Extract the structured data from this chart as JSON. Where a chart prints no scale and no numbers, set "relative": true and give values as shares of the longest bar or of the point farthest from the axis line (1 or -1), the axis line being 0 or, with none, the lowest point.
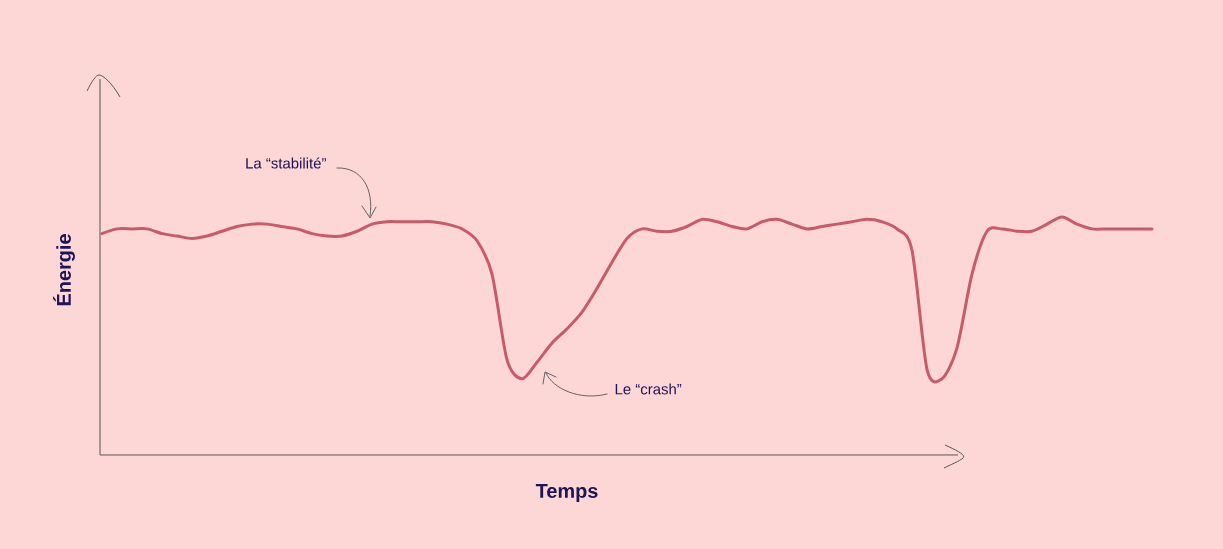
{
  "chart_data": {
    "type": "line",
    "relative": true,
    "xlabel": "Temps",
    "ylabel": "Énergie",
    "annotations": [
      "La “stabilité”",
      "Le “crash”"
    ],
    "categories": [
      null,
      null,
      null,
      null,
      null,
      null,
      null,
      null,
      null,
      null,
      null,
      null,
      null,
      null,
      null,
      null,
      null,
      null,
      null,
      null,
      null,
      null,
      null,
      null,
      null,
      null,
      null,
      null,
      null,
      null,
      null,
      null,
      null,
      null,
      null,
      null,
      null,
      null,
      null,
      null,
      null,
      null,
      null,
      null,
      null,
      null,
      null,
      null,
      null,
      null,
      null,
      null,
      null,
      null,
      null,
      null,
      null,
      null,
      null,
      null,
      null,
      null,
      null,
      null,
      null,
      null,
      null,
      null,
      null,
      null,
      null
    ],
    "series": [
      {
        "color": "#c85a6a",
        "values": [
          0.93,
          0.95,
          0.95,
          0.95,
          0.93,
          0.92,
          0.91,
          0.92,
          0.94,
          0.96,
          0.97,
          0.97,
          0.96,
          0.95,
          0.93,
          0.92,
          0.92,
          0.94,
          0.97,
          0.98,
          0.98,
          0.98,
          0.98,
          0.97,
          0.95,
          0.9,
          0.76,
          0.4,
          0.32,
          0.39,
          0.47,
          0.53,
          0.6,
          0.7,
          0.81,
          0.91,
          0.95,
          0.94,
          0.94,
          0.96,
          0.99,
          0.98,
          0.96,
          0.95,
          0.98,
          0.99,
          0.97,
          0.95,
          0.96,
          0.97,
          0.98,
          0.99,
          0.98,
          0.95,
          0.86,
          0.36,
          0.32,
          0.45,
          0.76,
          0.94,
          0.95,
          0.94,
          0.94,
          0.97,
          1.0,
          0.97,
          0.95,
          0.95,
          0.95,
          0.95,
          0.95
        ]
      }
    ],
    "marker": "none",
    "line_style": "solid"
  }
}
